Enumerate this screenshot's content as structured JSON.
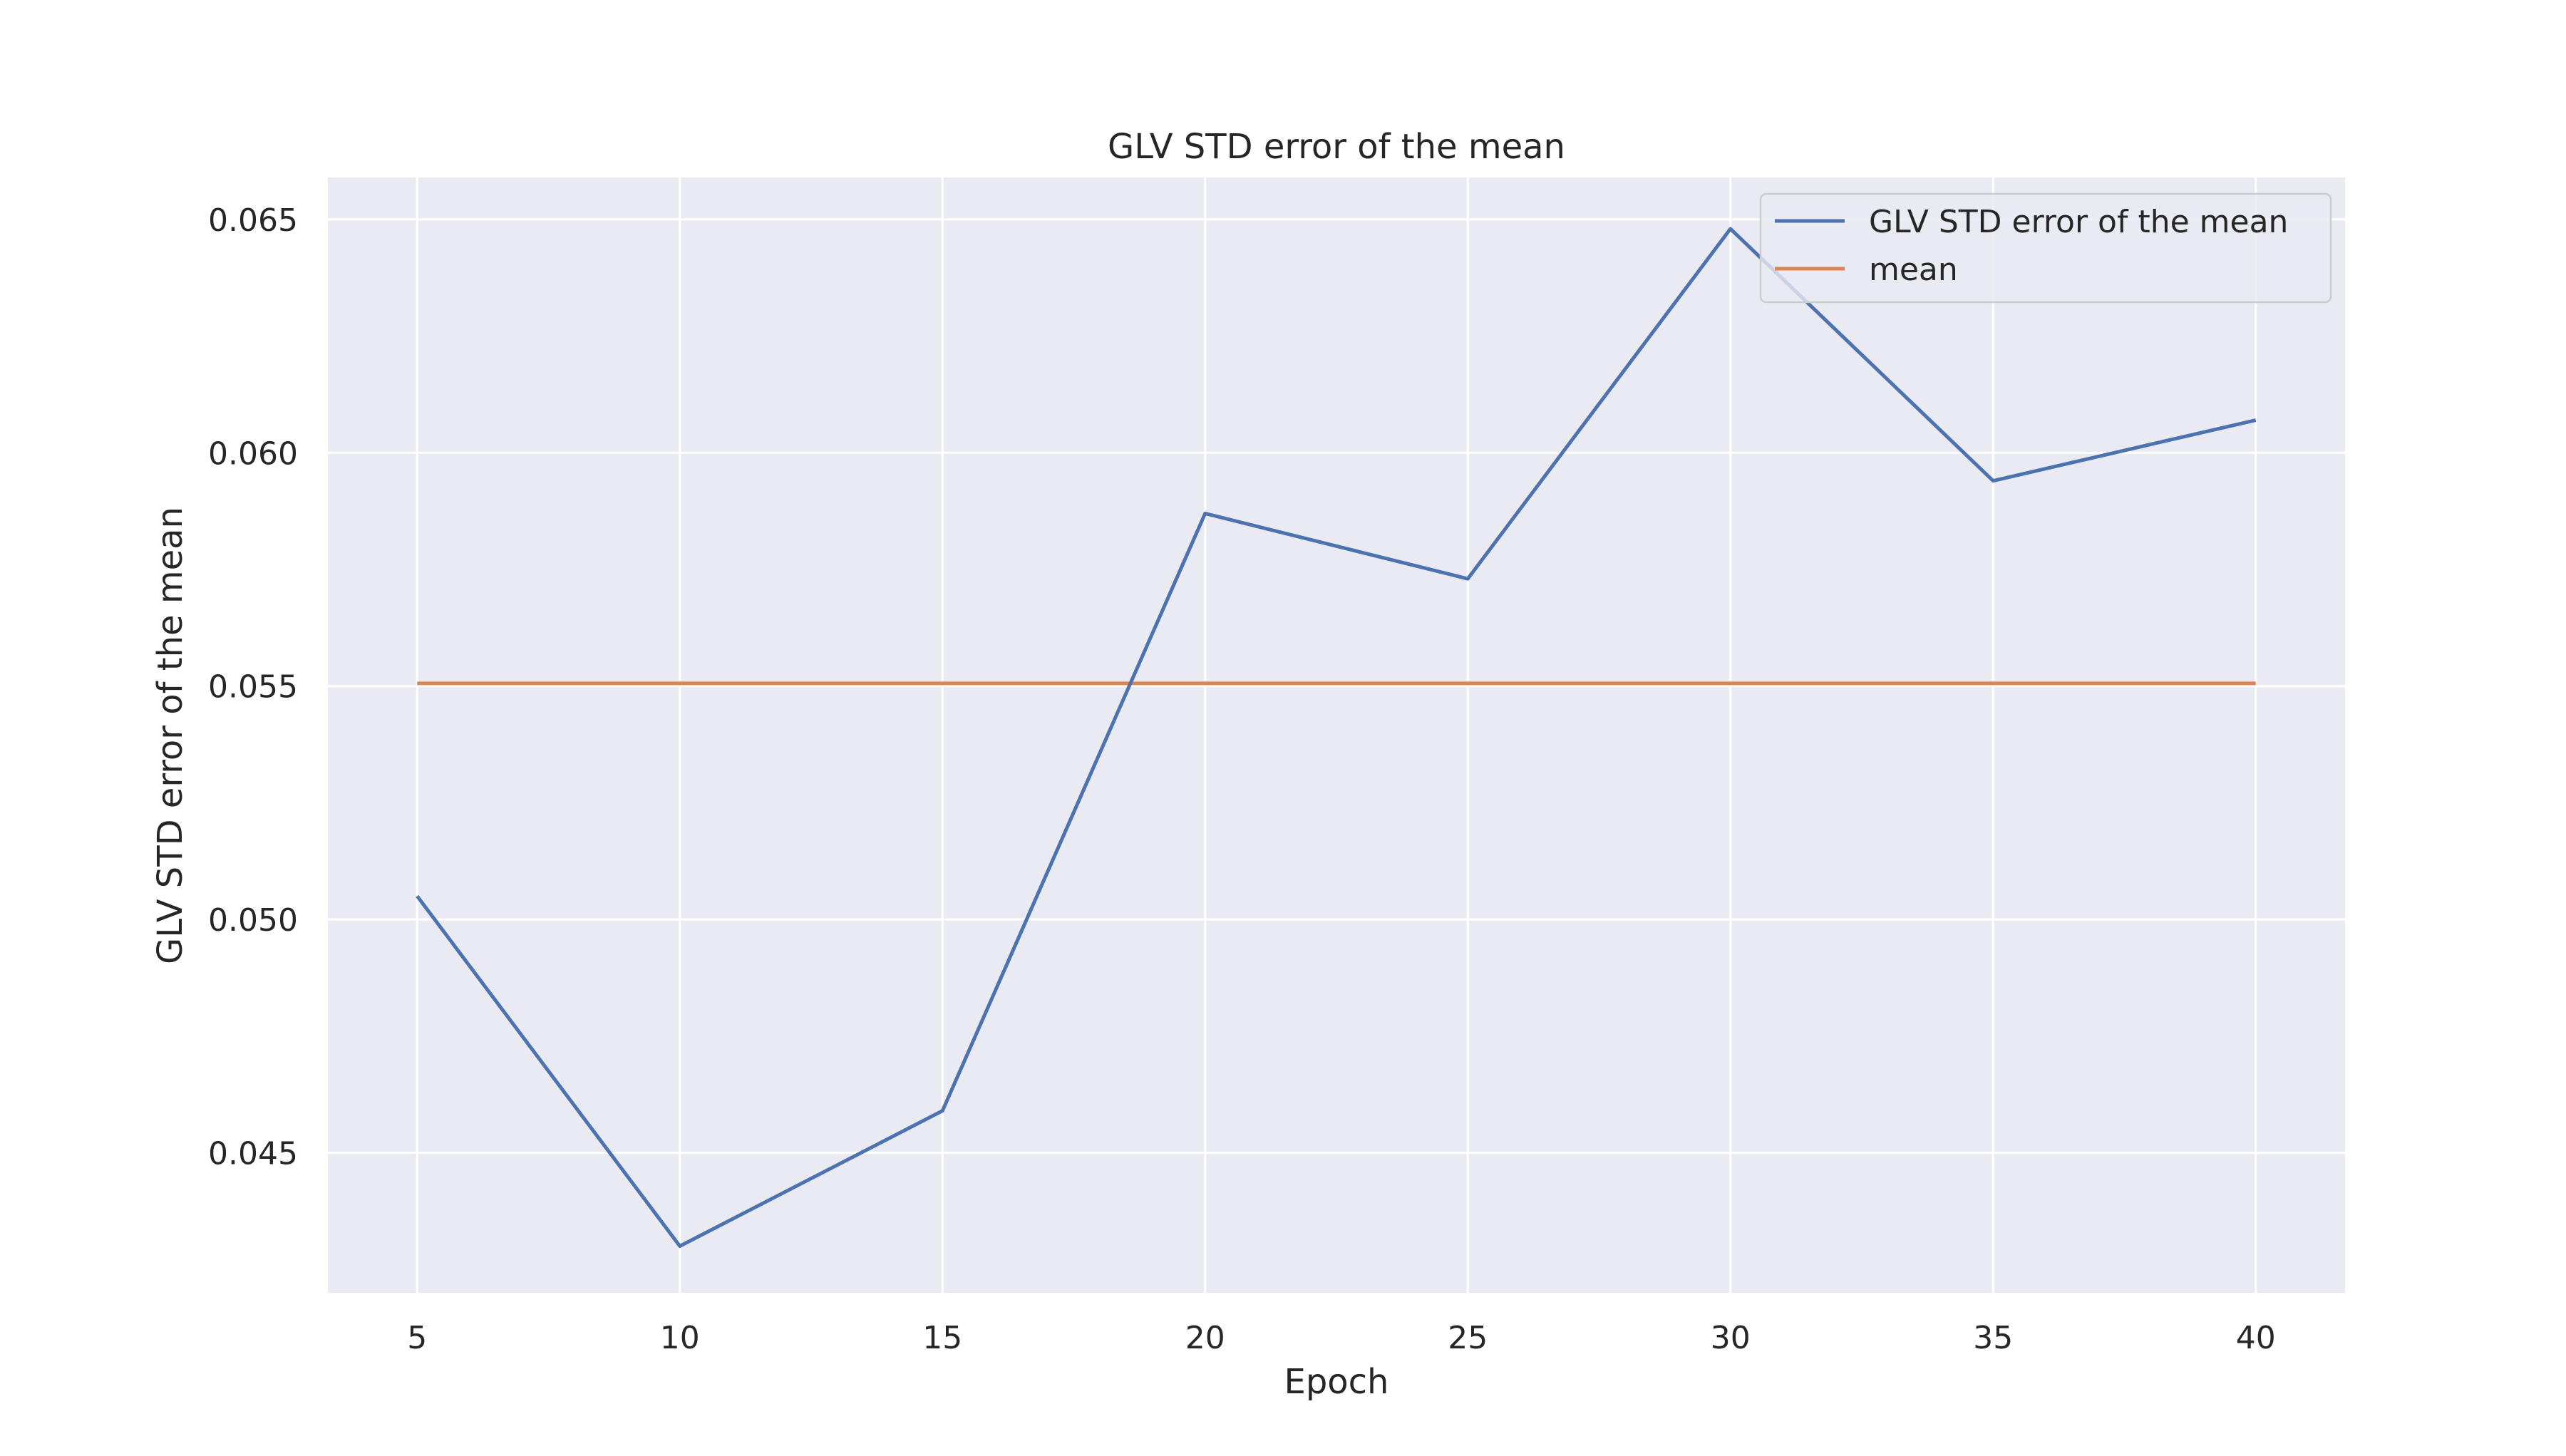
{
  "chart_data": {
    "type": "line",
    "title": "GLV STD error of the mean",
    "xlabel": "Epoch",
    "ylabel": "GLV STD error of the mean",
    "x": [
      5,
      10,
      15,
      20,
      25,
      30,
      35,
      40
    ],
    "series": [
      {
        "name": "GLV STD error of the mean",
        "color": "#4c72b0",
        "values": [
          0.0505,
          0.043,
          0.0459,
          0.0587,
          0.0573,
          0.0648,
          0.0594,
          0.0607
        ]
      },
      {
        "name": "mean",
        "color": "#dd8452",
        "values": [
          0.05506,
          0.05506,
          0.05506,
          0.05506,
          0.05506,
          0.05506,
          0.05506,
          0.05506
        ]
      }
    ],
    "xticks": [
      5,
      10,
      15,
      20,
      25,
      30,
      35,
      40
    ],
    "yticks": [
      0.045,
      0.05,
      0.055,
      0.06,
      0.065
    ],
    "ytick_labels": [
      "0.045",
      "0.050",
      "0.055",
      "0.060",
      "0.065"
    ],
    "xlim": [
      3.3,
      41.7
    ],
    "ylim": [
      0.042,
      0.0659
    ],
    "grid": true,
    "legend_position": "upper right",
    "background_color": "#eaeaf2",
    "grid_color": "#ffffff"
  }
}
